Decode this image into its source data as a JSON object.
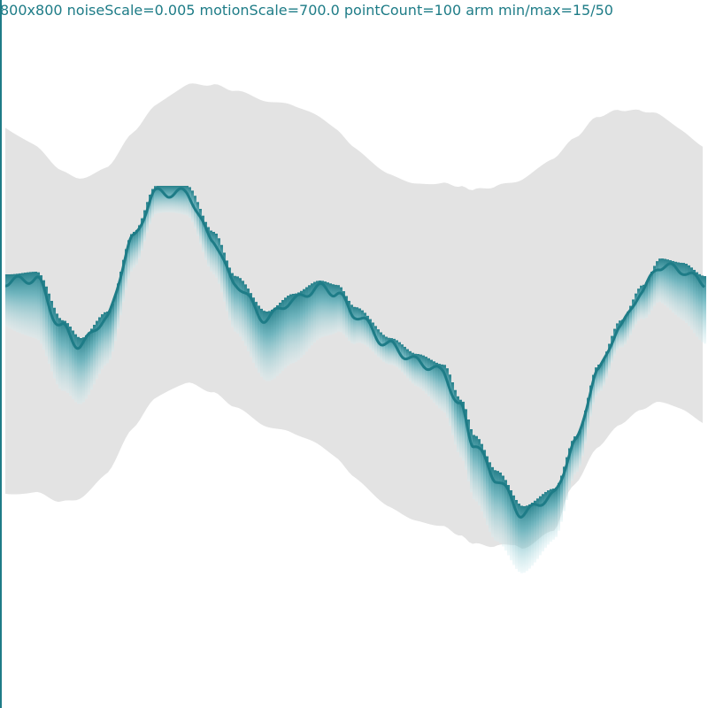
{
  "canvas": {
    "info_text": "800x800 noiseScale=0.005 motionScale=700.0 pointCount=100 arm min/max=15/50",
    "colors": {
      "background": "#ffffff",
      "shadow": "#e3e3e3",
      "ribbon_dark": "#1e7c87",
      "ribbon_mid": "#4ba6b2",
      "ribbon_light": "#d6eef1",
      "text": "#1e7c87"
    }
  }
}
